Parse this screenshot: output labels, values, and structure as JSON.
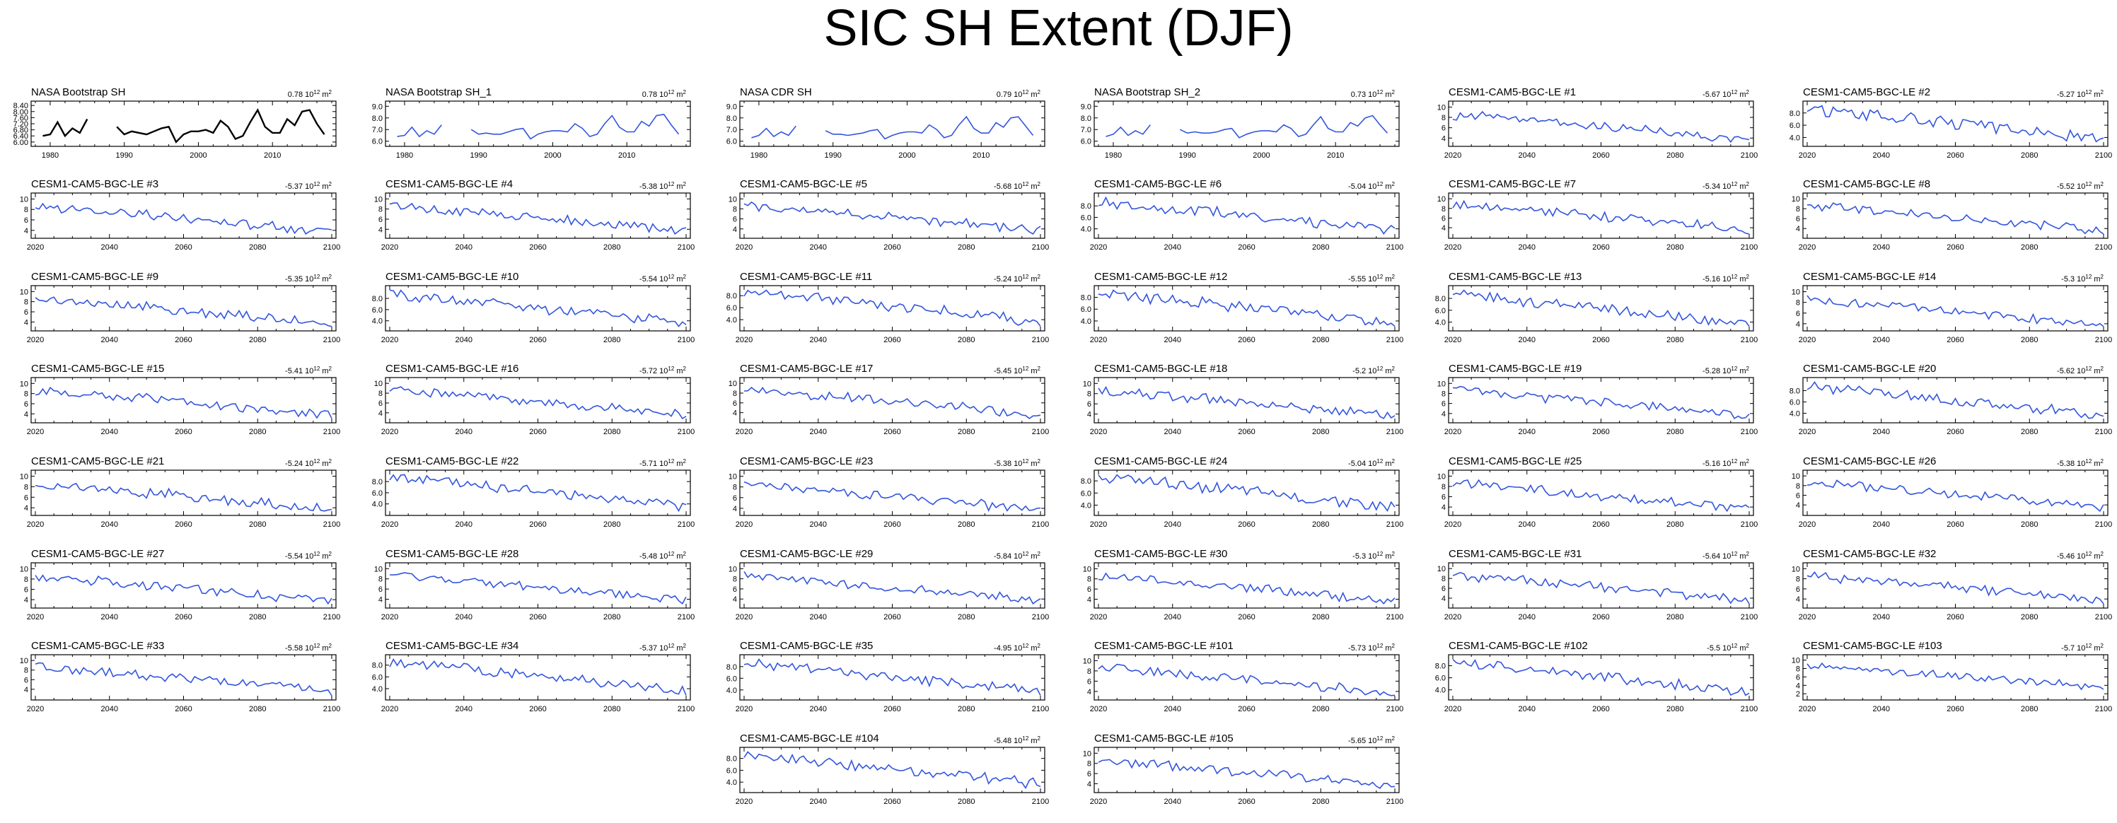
{
  "title": "SIC SH Extent (DJF)",
  "colors": {
    "obs": "#000000",
    "model": "#3355dd",
    "axis": "#000000"
  },
  "chart_data": {
    "type": "line",
    "title": "SIC SH Extent (DJF)",
    "units": "10^12 m^2",
    "panels": [
      {
        "name": "NASA Bootstrap SH",
        "trend": "0.78",
        "kind": "obs",
        "xlim": [
          1978,
          2018
        ],
        "ylim": [
          5.9,
          8.5
        ],
        "yticks": [
          "6.00",
          "6.40",
          "6.80",
          "7.20",
          "7.60",
          "8.00",
          "8.40"
        ],
        "xticks": [
          "1980",
          "1990",
          "2000",
          "2010"
        ],
        "x": [
          1979,
          1980,
          1981,
          1982,
          1983,
          1984,
          1985,
          1986,
          1987,
          1988,
          1989,
          1990,
          1991,
          1992,
          1993,
          1994,
          1995,
          1996,
          1997,
          1998,
          1999,
          2000,
          2001,
          2002,
          2003,
          2004,
          2005,
          2006,
          2007,
          2008,
          2009,
          2010,
          2011,
          2012,
          2013,
          2014,
          2015,
          2016,
          2017
        ],
        "y": [
          6.4,
          6.5,
          7.3,
          6.4,
          6.9,
          6.6,
          7.5,
          null,
          null,
          null,
          7.0,
          6.5,
          6.7,
          6.6,
          6.5,
          6.7,
          6.9,
          7.0,
          6.0,
          6.5,
          6.7,
          6.7,
          6.8,
          6.6,
          7.4,
          7.0,
          6.2,
          6.4,
          7.3,
          8.1,
          7.0,
          6.6,
          6.6,
          7.5,
          7.1,
          8.0,
          8.1,
          7.2,
          6.5
        ]
      },
      {
        "name": "NASA Bootstrap SH_1",
        "trend": "0.78",
        "kind": "model",
        "xlim": [
          1978,
          2018
        ],
        "ylim": [
          5.8,
          9.2
        ],
        "yticks": [
          "6.0",
          "7.0",
          "8.0",
          "9.0"
        ],
        "xticks": [
          "1980",
          "1990",
          "2000",
          "2010"
        ],
        "x": [
          1979,
          1980,
          1981,
          1982,
          1983,
          1984,
          1985,
          1986,
          1987,
          1988,
          1989,
          1990,
          1991,
          1992,
          1993,
          1994,
          1995,
          1996,
          1997,
          1998,
          1999,
          2000,
          2001,
          2002,
          2003,
          2004,
          2005,
          2006,
          2007,
          2008,
          2009,
          2010,
          2011,
          2012,
          2013,
          2014,
          2015,
          2016,
          2017
        ],
        "y": [
          6.4,
          6.5,
          7.2,
          6.4,
          6.9,
          6.6,
          7.4,
          null,
          null,
          null,
          7.0,
          6.6,
          6.7,
          6.6,
          6.6,
          6.8,
          7.0,
          7.1,
          6.2,
          6.6,
          6.8,
          6.9,
          6.9,
          6.8,
          7.5,
          7.1,
          6.4,
          6.6,
          7.5,
          8.2,
          7.2,
          6.8,
          6.8,
          7.7,
          7.3,
          8.2,
          8.3,
          7.4,
          6.6
        ]
      },
      {
        "name": "NASA CDR SH",
        "trend": "0.79",
        "kind": "model",
        "xlim": [
          1978,
          2018
        ],
        "ylim": [
          5.8,
          9.2
        ],
        "yticks": [
          "6.0",
          "7.0",
          "8.0",
          "9.0"
        ],
        "xticks": [
          "1980",
          "1990",
          "2000",
          "2010"
        ],
        "x": [
          1979,
          1980,
          1981,
          1982,
          1983,
          1984,
          1985,
          1986,
          1987,
          1988,
          1989,
          1990,
          1991,
          1992,
          1993,
          1994,
          1995,
          1996,
          1997,
          1998,
          1999,
          2000,
          2001,
          2002,
          2003,
          2004,
          2005,
          2006,
          2007,
          2008,
          2009,
          2010,
          2011,
          2012,
          2013,
          2014,
          2015,
          2016,
          2017
        ],
        "y": [
          6.3,
          6.5,
          7.1,
          6.4,
          6.8,
          6.5,
          7.3,
          null,
          null,
          null,
          6.9,
          6.6,
          6.6,
          6.5,
          6.6,
          6.7,
          6.9,
          7.0,
          6.2,
          6.5,
          6.7,
          6.8,
          6.8,
          6.7,
          7.4,
          7.0,
          6.3,
          6.5,
          7.4,
          8.1,
          7.1,
          6.7,
          6.7,
          7.6,
          7.2,
          8.0,
          8.1,
          7.3,
          6.5
        ]
      },
      {
        "name": "NASA Bootstrap SH_2",
        "trend": "0.73",
        "kind": "model",
        "xlim": [
          1978,
          2018
        ],
        "ylim": [
          5.8,
          9.2
        ],
        "yticks": [
          "6.0",
          "7.0",
          "8.0",
          "9.0"
        ],
        "xticks": [
          "1980",
          "1990",
          "2000",
          "2010"
        ],
        "x": [
          1979,
          1980,
          1981,
          1982,
          1983,
          1984,
          1985,
          1986,
          1987,
          1988,
          1989,
          1990,
          1991,
          1992,
          1993,
          1994,
          1995,
          1996,
          1997,
          1998,
          1999,
          2000,
          2001,
          2002,
          2003,
          2004,
          2005,
          2006,
          2007,
          2008,
          2009,
          2010,
          2011,
          2012,
          2013,
          2014,
          2015,
          2016,
          2017
        ],
        "y": [
          6.4,
          6.6,
          7.2,
          6.5,
          6.9,
          6.6,
          7.4,
          null,
          null,
          null,
          7.0,
          6.7,
          6.8,
          6.7,
          6.7,
          6.8,
          7.0,
          7.1,
          6.3,
          6.6,
          6.8,
          6.9,
          6.9,
          6.8,
          7.4,
          7.1,
          6.4,
          6.6,
          7.4,
          8.1,
          7.1,
          6.8,
          6.8,
          7.6,
          7.3,
          8.0,
          8.2,
          7.4,
          6.7
        ]
      },
      {
        "name": "CESM1-CAM5-BGC-LE #1",
        "trend": "-5.67",
        "kind": "model",
        "yticks": [
          "4",
          "6",
          "8",
          "10"
        ]
      },
      {
        "name": "CESM1-CAM5-BGC-LE #2",
        "trend": "-5.27",
        "kind": "model",
        "yticks": [
          "4.0",
          "6.0",
          "8.0"
        ]
      },
      {
        "name": "CESM1-CAM5-BGC-LE #3",
        "trend": "-5.37",
        "kind": "model",
        "yticks": [
          "4",
          "6",
          "8",
          "10"
        ]
      },
      {
        "name": "CESM1-CAM5-BGC-LE #4",
        "trend": "-5.38",
        "kind": "model",
        "yticks": [
          "4",
          "6",
          "8",
          "10"
        ]
      },
      {
        "name": "CESM1-CAM5-BGC-LE #5",
        "trend": "-5.68",
        "kind": "model",
        "yticks": [
          "4",
          "6",
          "8",
          "10"
        ]
      },
      {
        "name": "CESM1-CAM5-BGC-LE #6",
        "trend": "-5.04",
        "kind": "model",
        "yticks": [
          "4.0",
          "6.0",
          "8.0"
        ]
      },
      {
        "name": "CESM1-CAM5-BGC-LE #7",
        "trend": "-5.34",
        "kind": "model",
        "yticks": [
          "4",
          "6",
          "8",
          "10"
        ]
      },
      {
        "name": "CESM1-CAM5-BGC-LE #8",
        "trend": "-5.52",
        "kind": "model",
        "yticks": [
          "4",
          "6",
          "8",
          "10"
        ]
      },
      {
        "name": "CESM1-CAM5-BGC-LE #9",
        "trend": "-5.35",
        "kind": "model",
        "yticks": [
          "4",
          "6",
          "8",
          "10"
        ]
      },
      {
        "name": "CESM1-CAM5-BGC-LE #10",
        "trend": "-5.54",
        "kind": "model",
        "yticks": [
          "4.0",
          "6.0",
          "8.0"
        ]
      },
      {
        "name": "CESM1-CAM5-BGC-LE #11",
        "trend": "-5.24",
        "kind": "model",
        "yticks": [
          "4.0",
          "6.0",
          "8.0"
        ]
      },
      {
        "name": "CESM1-CAM5-BGC-LE #12",
        "trend": "-5.55",
        "kind": "model",
        "yticks": [
          "4.0",
          "6.0",
          "8.0"
        ]
      },
      {
        "name": "CESM1-CAM5-BGC-LE #13",
        "trend": "-5.16",
        "kind": "model",
        "yticks": [
          "4.0",
          "6.0",
          "8.0"
        ]
      },
      {
        "name": "CESM1-CAM5-BGC-LE #14",
        "trend": "-5.3",
        "kind": "model",
        "yticks": [
          "4",
          "6",
          "8",
          "10"
        ]
      },
      {
        "name": "CESM1-CAM5-BGC-LE #15",
        "trend": "-5.41",
        "kind": "model",
        "yticks": [
          "4",
          "6",
          "8",
          "10"
        ]
      },
      {
        "name": "CESM1-CAM5-BGC-LE #16",
        "trend": "-5.72",
        "kind": "model",
        "yticks": [
          "4",
          "6",
          "8",
          "10"
        ]
      },
      {
        "name": "CESM1-CAM5-BGC-LE #17",
        "trend": "-5.45",
        "kind": "model",
        "yticks": [
          "4",
          "6",
          "8",
          "10"
        ]
      },
      {
        "name": "CESM1-CAM5-BGC-LE #18",
        "trend": "-5.2",
        "kind": "model",
        "yticks": [
          "4",
          "6",
          "8",
          "10"
        ]
      },
      {
        "name": "CESM1-CAM5-BGC-LE #19",
        "trend": "-5.28",
        "kind": "model",
        "yticks": [
          "4",
          "6",
          "8",
          "10"
        ]
      },
      {
        "name": "CESM1-CAM5-BGC-LE #20",
        "trend": "-5.62",
        "kind": "model",
        "yticks": [
          "4.0",
          "6.0",
          "8.0"
        ]
      },
      {
        "name": "CESM1-CAM5-BGC-LE #21",
        "trend": "-5.24",
        "kind": "model",
        "yticks": [
          "4",
          "6",
          "8",
          "10"
        ]
      },
      {
        "name": "CESM1-CAM5-BGC-LE #22",
        "trend": "-5.71",
        "kind": "model",
        "yticks": [
          "4.0",
          "6.0",
          "8.0"
        ]
      },
      {
        "name": "CESM1-CAM5-BGC-LE #23",
        "trend": "-5.38",
        "kind": "model",
        "yticks": [
          "4",
          "6",
          "8",
          "10"
        ]
      },
      {
        "name": "CESM1-CAM5-BGC-LE #24",
        "trend": "-5.04",
        "kind": "model",
        "yticks": [
          "4.0",
          "6.0",
          "8.0"
        ]
      },
      {
        "name": "CESM1-CAM5-BGC-LE #25",
        "trend": "-5.16",
        "kind": "model",
        "yticks": [
          "4",
          "6",
          "8",
          "10"
        ]
      },
      {
        "name": "CESM1-CAM5-BGC-LE #26",
        "trend": "-5.38",
        "kind": "model",
        "yticks": [
          "4",
          "6",
          "8",
          "10"
        ]
      },
      {
        "name": "CESM1-CAM5-BGC-LE #27",
        "trend": "-5.54",
        "kind": "model",
        "yticks": [
          "4",
          "6",
          "8",
          "10"
        ]
      },
      {
        "name": "CESM1-CAM5-BGC-LE #28",
        "trend": "-5.48",
        "kind": "model",
        "yticks": [
          "4",
          "6",
          "8",
          "10"
        ]
      },
      {
        "name": "CESM1-CAM5-BGC-LE #29",
        "trend": "-5.84",
        "kind": "model",
        "yticks": [
          "4",
          "6",
          "8",
          "10"
        ]
      },
      {
        "name": "CESM1-CAM5-BGC-LE #30",
        "trend": "-5.3",
        "kind": "model",
        "yticks": [
          "4",
          "6",
          "8",
          "10"
        ]
      },
      {
        "name": "CESM1-CAM5-BGC-LE #31",
        "trend": "-5.64",
        "kind": "model",
        "yticks": [
          "4",
          "6",
          "8",
          "10"
        ]
      },
      {
        "name": "CESM1-CAM5-BGC-LE #32",
        "trend": "-5.46",
        "kind": "model",
        "yticks": [
          "4",
          "6",
          "8",
          "10"
        ]
      },
      {
        "name": "CESM1-CAM5-BGC-LE #33",
        "trend": "-5.58",
        "kind": "model",
        "yticks": [
          "4",
          "6",
          "8",
          "10"
        ]
      },
      {
        "name": "CESM1-CAM5-BGC-LE #34",
        "trend": "-5.37",
        "kind": "model",
        "yticks": [
          "4.0",
          "6.0",
          "8.0"
        ]
      },
      {
        "name": "CESM1-CAM5-BGC-LE #35",
        "trend": "-4.95",
        "kind": "model",
        "yticks": [
          "4.0",
          "6.0",
          "8.0"
        ]
      },
      {
        "name": "CESM1-CAM5-BGC-LE #101",
        "trend": "-5.73",
        "kind": "model",
        "yticks": [
          "4",
          "6",
          "8",
          "10"
        ]
      },
      {
        "name": "CESM1-CAM5-BGC-LE #102",
        "trend": "-5.5",
        "kind": "model",
        "yticks": [
          "4.0",
          "6.0",
          "8.0"
        ]
      },
      {
        "name": "CESM1-CAM5-BGC-LE #103",
        "trend": "-5.7",
        "kind": "model",
        "yticks": [
          "2",
          "4",
          "6",
          "8",
          "10"
        ]
      },
      {
        "name": "CESM1-CAM5-BGC-LE #104",
        "trend": "-5.48",
        "kind": "model",
        "yticks": [
          "4.0",
          "6.0",
          "8.0"
        ]
      },
      {
        "name": "CESM1-CAM5-BGC-LE #105",
        "trend": "-5.65",
        "kind": "model",
        "yticks": [
          "4",
          "6",
          "8",
          "10"
        ]
      }
    ],
    "model_xlim": [
      2020,
      2100
    ],
    "model_xticks": [
      "2020",
      "2040",
      "2060",
      "2080",
      "2100"
    ]
  }
}
